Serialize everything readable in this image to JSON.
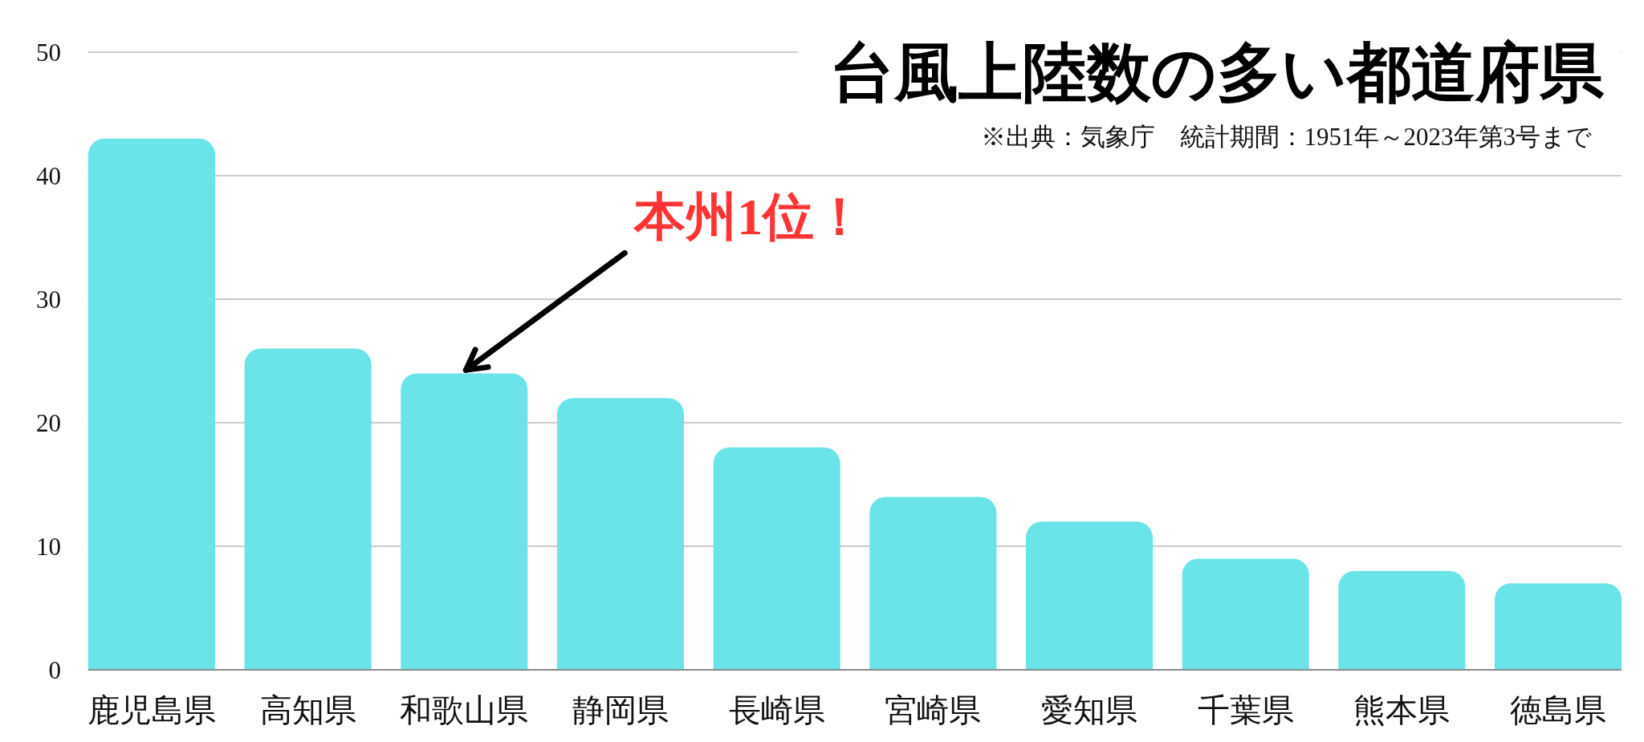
{
  "chart_data": {
    "type": "bar",
    "title": "台風上陸数の多い都道府県",
    "subtitle": "※出典：気象庁　統計期間：1951年～2023年第3号まで",
    "categories": [
      "鹿児島県",
      "高知県",
      "和歌山県",
      "静岡県",
      "長崎県",
      "宮崎県",
      "愛知県",
      "千葉県",
      "熊本県",
      "徳島県"
    ],
    "values": [
      43,
      26,
      24,
      22,
      18,
      14,
      12,
      9,
      8,
      7
    ],
    "color": "#6ae4e8",
    "ylim": [
      0,
      50
    ],
    "yticks": [
      0,
      10,
      20,
      30,
      40,
      50
    ],
    "grid": "y",
    "annotations": [
      {
        "text": "本州1位！",
        "x": "和歌山県",
        "y": 24
      }
    ]
  }
}
